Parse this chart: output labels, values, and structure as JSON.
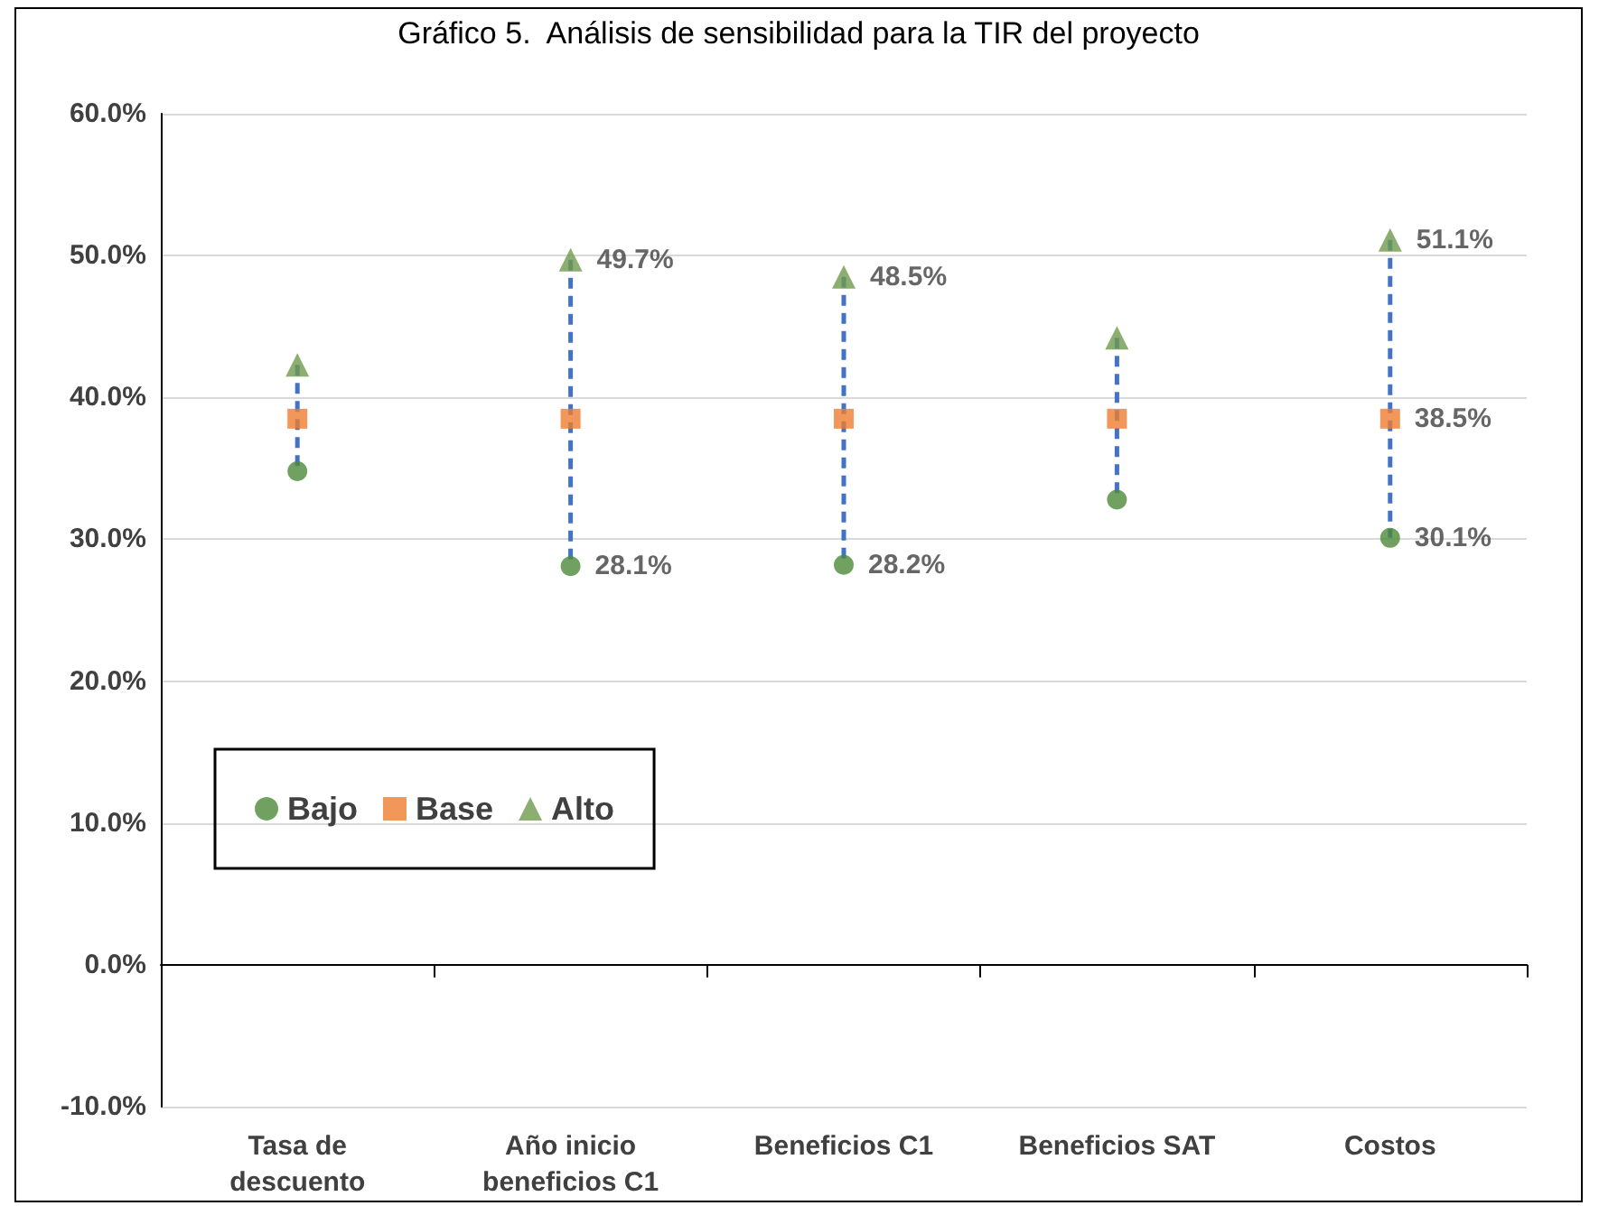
{
  "chart_data": {
    "type": "scatter",
    "title": "Gráfico 5.  Análisis de sensibilidad para la TIR del proyecto",
    "categories": [
      "Tasa de\ndescuento",
      "Año inicio\nbeneficios C1",
      "Beneficios C1",
      "Beneficios SAT",
      "Costos"
    ],
    "series": [
      {
        "name": "Bajo",
        "color": "#4e8a3a",
        "marker": "circle",
        "values": [
          34.8,
          28.1,
          28.2,
          32.8,
          30.1
        ],
        "value_labels": [
          null,
          "28.1%",
          "28.2%",
          null,
          "30.1%"
        ]
      },
      {
        "name": "Base",
        "color": "#ed7d31",
        "marker": "square",
        "values": [
          38.5,
          38.5,
          38.5,
          38.5,
          38.5
        ],
        "value_labels": [
          null,
          null,
          null,
          null,
          "38.5%"
        ]
      },
      {
        "name": "Alto",
        "color": "#6f9a4e",
        "marker": "triangle",
        "values": [
          42.3,
          49.7,
          48.5,
          44.2,
          51.1
        ],
        "value_labels": [
          null,
          "49.7%",
          "48.5%",
          null,
          "51.1%"
        ]
      }
    ],
    "ylim": [
      -10,
      60
    ],
    "yticks": [
      {
        "value": -10,
        "label": "-10.0%"
      },
      {
        "value": 0,
        "label": "0.0%"
      },
      {
        "value": 10,
        "label": "10.0%"
      },
      {
        "value": 20,
        "label": "20.0%"
      },
      {
        "value": 30,
        "label": "30.0%"
      },
      {
        "value": 40,
        "label": "40.0%"
      },
      {
        "value": 50,
        "label": "50.0%"
      },
      {
        "value": 60,
        "label": "60.0%"
      }
    ],
    "grid": "y",
    "legend": "bottom left",
    "line_style": "dashed"
  }
}
